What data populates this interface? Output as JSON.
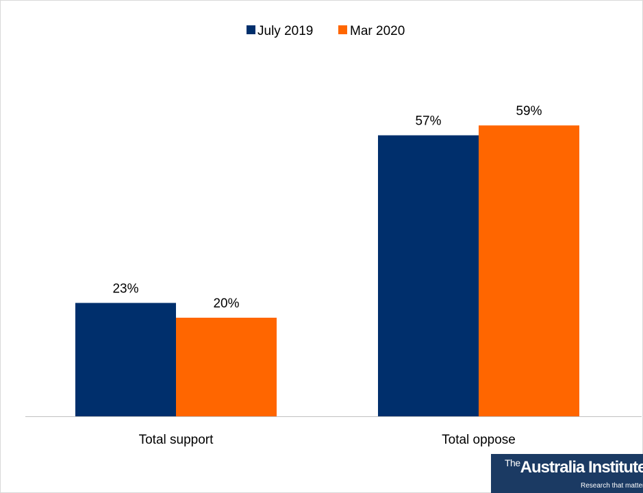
{
  "chart_data": {
    "type": "bar",
    "categories": [
      "Total support",
      "Total oppose"
    ],
    "series": [
      {
        "name": "July 2019",
        "values": [
          23,
          57
        ],
        "labels": [
          "23%",
          "57%"
        ],
        "color": "#002f6c"
      },
      {
        "name": "Mar 2020",
        "values": [
          20,
          59
        ],
        "labels": [
          "20%",
          "59%"
        ],
        "color": "#ff6600"
      }
    ],
    "title": "",
    "xlabel": "",
    "ylabel": "",
    "ylim": [
      0,
      70
    ],
    "grid": false,
    "legend": "top-center"
  },
  "branding": {
    "the": "The",
    "name": "Australia Institute",
    "tagline": "Research that matters.",
    "background": "#1b3a63"
  }
}
